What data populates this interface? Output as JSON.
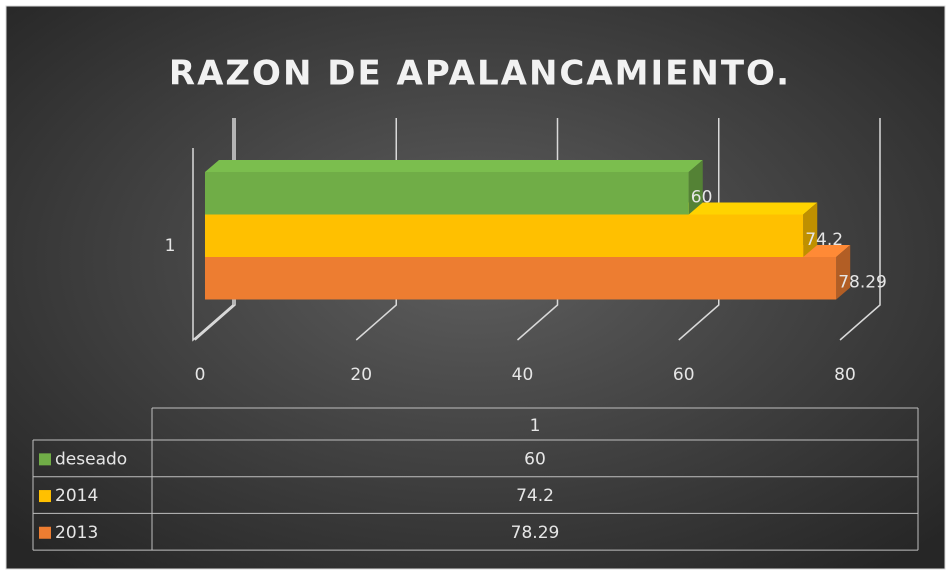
{
  "chart_data": {
    "type": "bar",
    "orientation": "horizontal",
    "three_d": true,
    "title": "RAZON DE APALANCAMIENTO.",
    "categories": [
      "1"
    ],
    "series": [
      {
        "name": "deseado",
        "color": "#70ad47",
        "values": [
          60
        ]
      },
      {
        "name": "2014",
        "color": "#ffc000",
        "values": [
          74.2
        ]
      },
      {
        "name": "2013",
        "color": "#ed7d31",
        "values": [
          78.29
        ]
      }
    ],
    "xlim": [
      0,
      80
    ],
    "xticks": [
      0,
      20,
      40,
      60,
      80
    ],
    "grid": true,
    "data_table": true
  }
}
